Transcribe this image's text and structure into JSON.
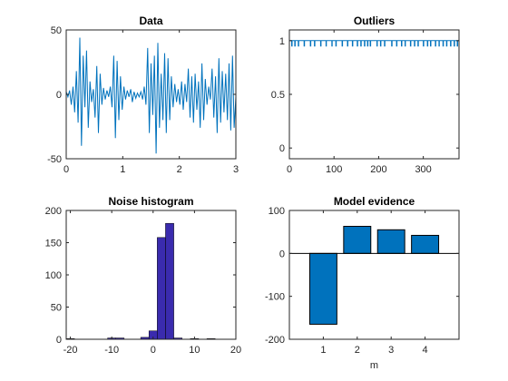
{
  "colors": {
    "line": "#0072BD",
    "hist_fill": "#3A2BAE",
    "bar_fill": "#0072BD",
    "axis": "#262626"
  },
  "chart_data": [
    {
      "id": "data",
      "type": "line",
      "title": "Data",
      "xlabel": "",
      "ylabel": "",
      "xlim": [
        0,
        3
      ],
      "ylim": [
        -50,
        50
      ],
      "xticks": [
        0,
        1,
        2,
        3
      ],
      "yticks": [
        -50,
        0,
        50
      ],
      "x": [
        0.0,
        0.03,
        0.06,
        0.09,
        0.12,
        0.15,
        0.18,
        0.21,
        0.24,
        0.27,
        0.3,
        0.33,
        0.36,
        0.39,
        0.42,
        0.45,
        0.48,
        0.51,
        0.54,
        0.57,
        0.6,
        0.63,
        0.66,
        0.69,
        0.72,
        0.75,
        0.78,
        0.81,
        0.84,
        0.87,
        0.9,
        0.93,
        0.96,
        0.99,
        1.02,
        1.05,
        1.08,
        1.11,
        1.14,
        1.17,
        1.2,
        1.23,
        1.26,
        1.29,
        1.32,
        1.35,
        1.38,
        1.41,
        1.44,
        1.47,
        1.5,
        1.53,
        1.56,
        1.59,
        1.62,
        1.65,
        1.68,
        1.71,
        1.74,
        1.77,
        1.8,
        1.83,
        1.86,
        1.89,
        1.92,
        1.95,
        1.98,
        2.01,
        2.04,
        2.07,
        2.1,
        2.13,
        2.16,
        2.19,
        2.22,
        2.25,
        2.28,
        2.31,
        2.34,
        2.37,
        2.4,
        2.43,
        2.46,
        2.49,
        2.52,
        2.55,
        2.58,
        2.61,
        2.64,
        2.67,
        2.7,
        2.73,
        2.76,
        2.79,
        2.82,
        2.85,
        2.88,
        2.91,
        2.94,
        2.97,
        3.0
      ],
      "y": [
        2,
        -2,
        3,
        -8,
        6,
        -14,
        18,
        -22,
        44,
        -40,
        30,
        -10,
        34,
        -26,
        10,
        -6,
        4,
        -18,
        22,
        -30,
        16,
        -8,
        5,
        -4,
        3,
        -2,
        6,
        -10,
        30,
        -34,
        26,
        -20,
        14,
        -12,
        6,
        -4,
        3,
        -2,
        4,
        -6,
        2,
        -3,
        1,
        -2,
        2,
        -4,
        6,
        -8,
        36,
        -30,
        24,
        -16,
        30,
        -46,
        40,
        -26,
        16,
        -20,
        32,
        -30,
        28,
        -20,
        14,
        -10,
        8,
        -6,
        4,
        -8,
        10,
        -12,
        8,
        -6,
        20,
        -18,
        14,
        -22,
        16,
        -12,
        10,
        -26,
        24,
        -20,
        12,
        -8,
        6,
        -4,
        20,
        -18,
        14,
        -30,
        28,
        -22,
        18,
        -14,
        16,
        -20,
        24,
        -28,
        30,
        -26,
        -2
      ]
    },
    {
      "id": "outliers",
      "type": "line",
      "title": "Outliers",
      "xlabel": "",
      "ylabel": "",
      "xlim": [
        0,
        380
      ],
      "ylim": [
        -0.1,
        1.1
      ],
      "xticks": [
        0,
        100,
        200,
        300
      ],
      "yticks": [
        0,
        0.5,
        1
      ],
      "description_values": "binary indicator per sample; 1 = inlier, drops to 0.95 at outlier indices",
      "outlier_indices": [
        5,
        12,
        20,
        33,
        47,
        56,
        70,
        82,
        95,
        104,
        118,
        130,
        141,
        152,
        160,
        168,
        175,
        181,
        196,
        204,
        213,
        229,
        240,
        251,
        259,
        271,
        280,
        288,
        300,
        309,
        316,
        327,
        335,
        344,
        352,
        361,
        369,
        376
      ]
    },
    {
      "id": "noise_histogram",
      "type": "bar",
      "title": "Noise histogram",
      "xlabel": "",
      "ylabel": "",
      "xlim": [
        -21,
        20
      ],
      "ylim": [
        0,
        200
      ],
      "xticks": [
        -20,
        -10,
        0,
        10,
        20
      ],
      "yticks": [
        0,
        50,
        100,
        150,
        200
      ],
      "bin_edges": [
        -21,
        -19,
        -17,
        -15,
        -13,
        -11,
        -9,
        -7,
        -5,
        -3,
        -1,
        1,
        3,
        5,
        7,
        9,
        11,
        13,
        15,
        17,
        19
      ],
      "counts": [
        1,
        0,
        0,
        0,
        0,
        2,
        2,
        0,
        0,
        3,
        13,
        158,
        180,
        2,
        0,
        1,
        0,
        1,
        0,
        0
      ]
    },
    {
      "id": "model_evidence",
      "type": "bar",
      "title": "Model evidence",
      "xlabel": "m",
      "ylabel": "",
      "xlim": [
        0,
        5
      ],
      "ylim": [
        -200,
        100
      ],
      "xticks": [
        1,
        2,
        3,
        4
      ],
      "yticks": [
        -200,
        -100,
        0,
        100
      ],
      "categories": [
        1,
        2,
        3,
        4
      ],
      "values": [
        -165,
        63,
        55,
        42
      ]
    }
  ]
}
